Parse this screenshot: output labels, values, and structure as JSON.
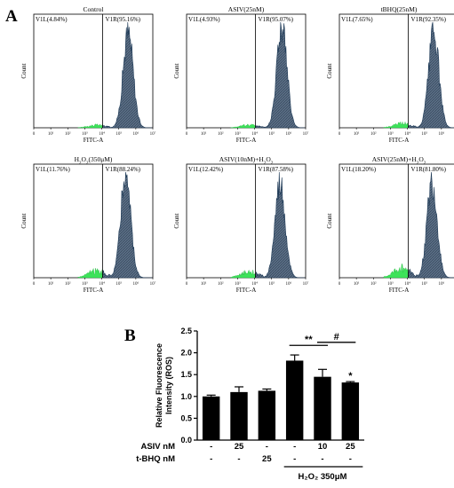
{
  "panel_a_label": "A",
  "panel_b_label": "B",
  "chart_data": [
    {
      "type": "histogram",
      "title": "Control",
      "xlabel": "FITC-A",
      "ylabel": "Count",
      "x_scale": "log",
      "x_ticks": [
        "0",
        "10¹",
        "10²",
        "10³",
        "10⁴",
        "10⁵",
        "10⁶",
        "10⁷"
      ],
      "gates": [
        {
          "label": "V1L(4.84%)",
          "percent": 4.84
        },
        {
          "label": "V1R(95.16%)",
          "percent": 95.16
        }
      ],
      "peak_log": 5.55,
      "green_fraction": 0.05
    },
    {
      "type": "histogram",
      "title": "ASIV(25nM)",
      "xlabel": "FITC-A",
      "ylabel": "Count",
      "x_scale": "log",
      "x_ticks": [
        "0",
        "10¹",
        "10²",
        "10³",
        "10⁴",
        "10⁵",
        "10⁶",
        "10⁷"
      ],
      "gates": [
        {
          "label": "V1L(4.93%)",
          "percent": 4.93
        },
        {
          "label": "V1R(95.07%)",
          "percent": 95.07
        }
      ],
      "peak_log": 5.6,
      "green_fraction": 0.05
    },
    {
      "type": "histogram",
      "title": "tBHQ(25nM)",
      "xlabel": "FITC-A",
      "ylabel": "Count",
      "x_scale": "log",
      "x_ticks": [
        "0",
        "10¹",
        "10²",
        "10³",
        "10⁴",
        "10⁵",
        "10⁶",
        "10⁷"
      ],
      "gates": [
        {
          "label": "V1L(7.65%)",
          "percent": 7.65
        },
        {
          "label": "V1R(92.35%)",
          "percent": 92.35
        }
      ],
      "peak_log": 5.55,
      "green_fraction": 0.08
    },
    {
      "type": "histogram",
      "title_parts": [
        "H",
        "2",
        "O",
        "2",
        "(350μM)"
      ],
      "xlabel": "FITC-A",
      "ylabel": "Count",
      "x_scale": "log",
      "x_ticks": [
        "0",
        "10¹",
        "10²",
        "10³",
        "10⁴",
        "10⁵",
        "10⁶",
        "10⁷"
      ],
      "gates": [
        {
          "label": "V1L(11.76%)",
          "percent": 11.76
        },
        {
          "label": "V1R(88.24%)",
          "percent": 88.24
        }
      ],
      "peak_log": 5.4,
      "green_fraction": 0.12
    },
    {
      "type": "histogram",
      "title_parts": [
        "ASIV(10nM)+H",
        "2",
        "O",
        "2",
        ""
      ],
      "xlabel": "FITC-A",
      "ylabel": "Count",
      "x_scale": "log",
      "x_ticks": [
        "0",
        "10¹",
        "10²",
        "10³",
        "10⁴",
        "10⁵",
        "10⁶",
        "10⁷"
      ],
      "gates": [
        {
          "label": "V1L(12.42%)",
          "percent": 12.42
        },
        {
          "label": "V1R(87.58%)",
          "percent": 87.58
        }
      ],
      "peak_log": 5.5,
      "green_fraction": 0.12
    },
    {
      "type": "histogram",
      "title_parts": [
        "ASIV(25nM)+H",
        "2",
        "O",
        "2",
        ""
      ],
      "xlabel": "FITC-A",
      "ylabel": "Count",
      "x_scale": "log",
      "x_ticks": [
        "0",
        "10¹",
        "10²",
        "10³",
        "10⁴",
        "10⁵",
        "10⁶",
        "10⁷"
      ],
      "gates": [
        {
          "label": "V1L(18.20%)",
          "percent": 18.2
        },
        {
          "label": "V1R(81.80%)",
          "percent": 81.8
        }
      ],
      "peak_log": 5.45,
      "green_fraction": 0.18
    },
    {
      "type": "bar",
      "ylabel_lines": [
        "Relative Fluorescence",
        "Intensity (ROS)"
      ],
      "ylim": [
        0.0,
        2.5
      ],
      "yticks": [
        "0.0",
        "0.5",
        "1.0",
        "1.5",
        "2.0",
        "2.5"
      ],
      "values": [
        1.0,
        1.1,
        1.13,
        1.82,
        1.45,
        1.32
      ],
      "errors": [
        0.03,
        0.12,
        0.04,
        0.13,
        0.17,
        0.02
      ],
      "rows": [
        {
          "label": "ASIV nM",
          "values": [
            "-",
            "25",
            "-",
            "-",
            "10",
            "25"
          ]
        },
        {
          "label": "t-BHQ nM",
          "values": [
            "-",
            "-",
            "25",
            "-",
            "-",
            "-"
          ]
        }
      ],
      "group_label": "H₂O₂ 350μM",
      "significance": [
        {
          "symbol": "**",
          "from": 3,
          "to": 4
        },
        {
          "symbol": "#",
          "from": 4,
          "to": 5
        },
        {
          "symbol": "*",
          "at": 5
        }
      ]
    }
  ]
}
